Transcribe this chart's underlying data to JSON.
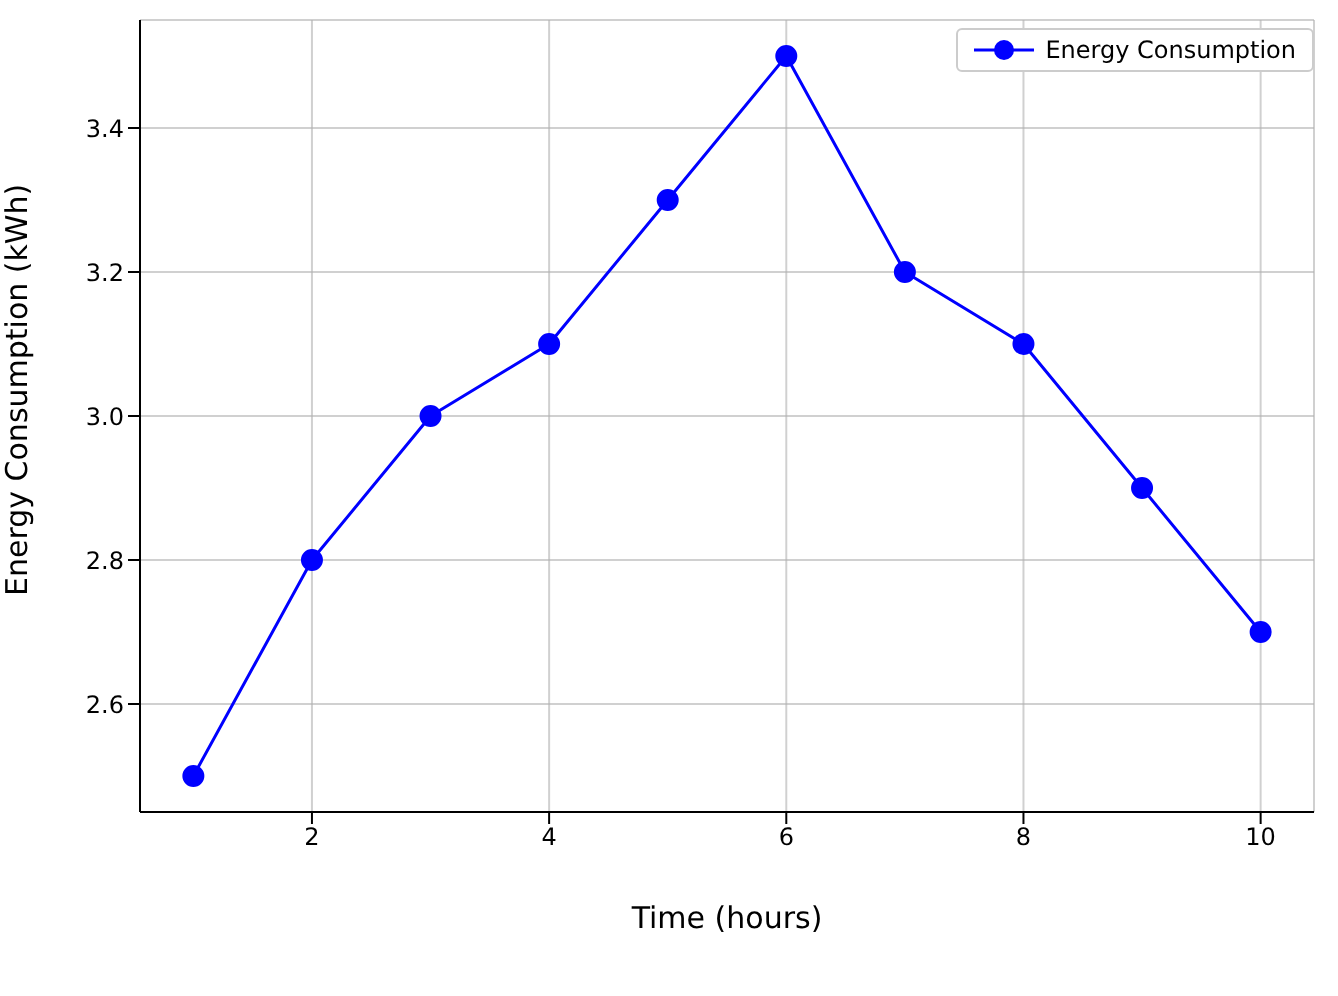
{
  "chart_data": {
    "type": "line",
    "xlabel": "Time (hours)",
    "ylabel": "Energy Consumption (kWh)",
    "x": [
      1,
      2,
      3,
      4,
      5,
      6,
      7,
      8,
      9,
      10
    ],
    "series": [
      {
        "name": "Energy Consumption",
        "color": "#0000ff",
        "values": [
          2.5,
          2.8,
          3.0,
          3.1,
          3.3,
          3.5,
          3.2,
          3.1,
          2.9,
          2.7
        ]
      }
    ],
    "xlim": [
      0.55,
      10.45
    ],
    "ylim": [
      2.45,
      3.55
    ],
    "xticks": [
      2,
      4,
      6,
      8,
      10
    ],
    "yticks": [
      {
        "value": 2.6,
        "label": "2.6"
      },
      {
        "value": 2.8,
        "label": "2.8"
      },
      {
        "value": 3.0,
        "label": "3.0"
      },
      {
        "value": 3.2,
        "label": "3.2"
      },
      {
        "value": 3.4,
        "label": "3.4"
      }
    ],
    "grid": true,
    "legend": "top right",
    "marker": "circle",
    "line_style": "solid"
  }
}
